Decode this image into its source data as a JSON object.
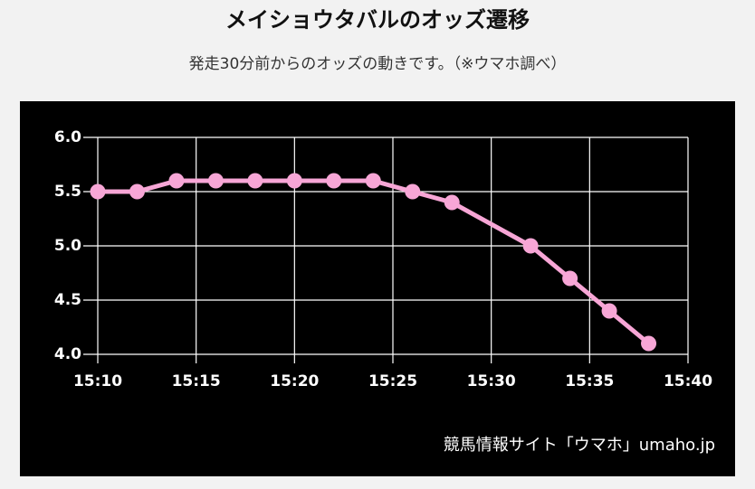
{
  "chart_data": {
    "type": "line",
    "title": "メイショウタバルのオッズ遷移",
    "subtitle": "発走30分前からのオッズの動きです。（※ウマホ調べ）",
    "source": "競馬情報サイト「ウマホ」umaho.jp",
    "x": [
      "15:10",
      "15:12",
      "15:14",
      "15:16",
      "15:18",
      "15:20",
      "15:22",
      "15:24",
      "15:26",
      "15:28",
      "15:32",
      "15:34",
      "15:36",
      "15:38"
    ],
    "series": [
      {
        "name": "メイショウタバル",
        "color": "#f7a6d6",
        "values": [
          5.5,
          5.5,
          5.6,
          5.6,
          5.6,
          5.6,
          5.6,
          5.6,
          5.5,
          5.4,
          5.0,
          4.7,
          4.4,
          4.1
        ]
      }
    ],
    "xlim": [
      "15:10",
      "15:40"
    ],
    "xticks": [
      "15:10",
      "15:15",
      "15:20",
      "15:25",
      "15:30",
      "15:35",
      "15:40"
    ],
    "ylim": [
      4,
      6
    ],
    "yticks": [
      {
        "value": 4,
        "label": "4.0"
      },
      {
        "value": 4.5,
        "label": "4.5"
      },
      {
        "value": 5,
        "label": "5.0"
      },
      {
        "value": 5.5,
        "label": "5.5"
      },
      {
        "value": 6,
        "label": "6.0"
      }
    ],
    "grid": true
  }
}
